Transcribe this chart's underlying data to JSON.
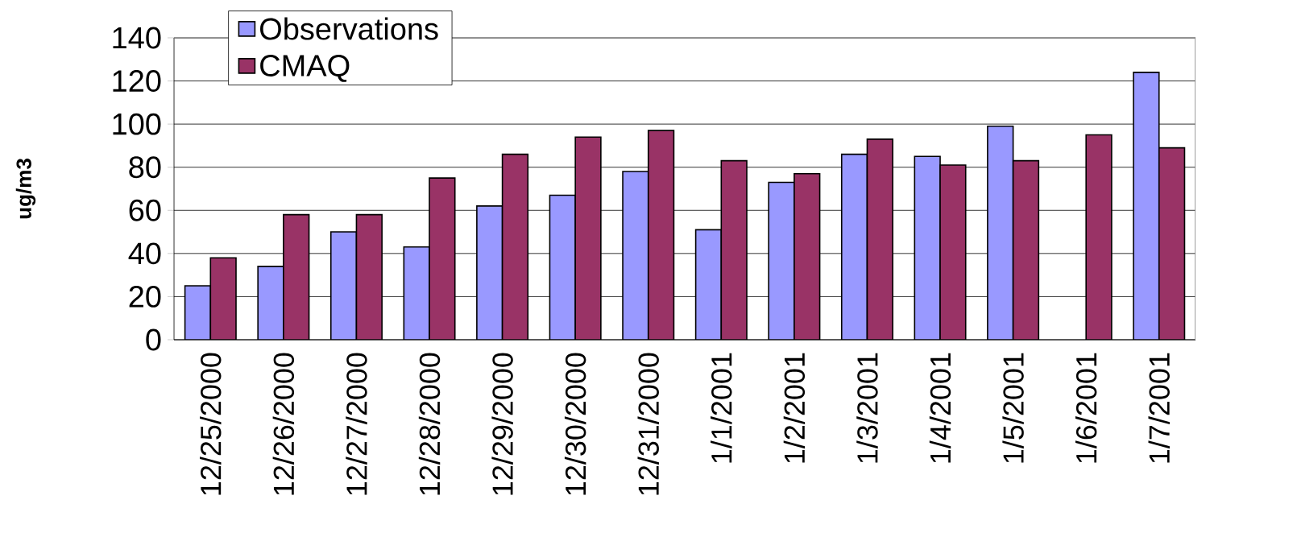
{
  "chart_data": {
    "type": "bar",
    "ylabel": "ug/m3",
    "categories": [
      "12/25/2000",
      "12/26/2000",
      "12/27/2000",
      "12/28/2000",
      "12/29/2000",
      "12/30/2000",
      "12/31/2000",
      "1/1/2001",
      "1/2/2001",
      "1/3/2001",
      "1/4/2001",
      "1/5/2001",
      "1/6/2001",
      "1/7/2001"
    ],
    "series": [
      {
        "name": "Observations",
        "color": "#9999ff",
        "values": [
          25,
          34,
          50,
          43,
          62,
          67,
          78,
          51,
          73,
          86,
          85,
          99,
          null,
          124
        ]
      },
      {
        "name": "CMAQ",
        "color": "#993366",
        "values": [
          38,
          58,
          58,
          75,
          86,
          94,
          97,
          83,
          77,
          93,
          81,
          83,
          95,
          89
        ]
      }
    ],
    "ylim": [
      0,
      140
    ],
    "yticks": [
      0,
      20,
      40,
      60,
      80,
      100,
      120,
      140
    ],
    "grid": "y",
    "legend": "top left"
  }
}
